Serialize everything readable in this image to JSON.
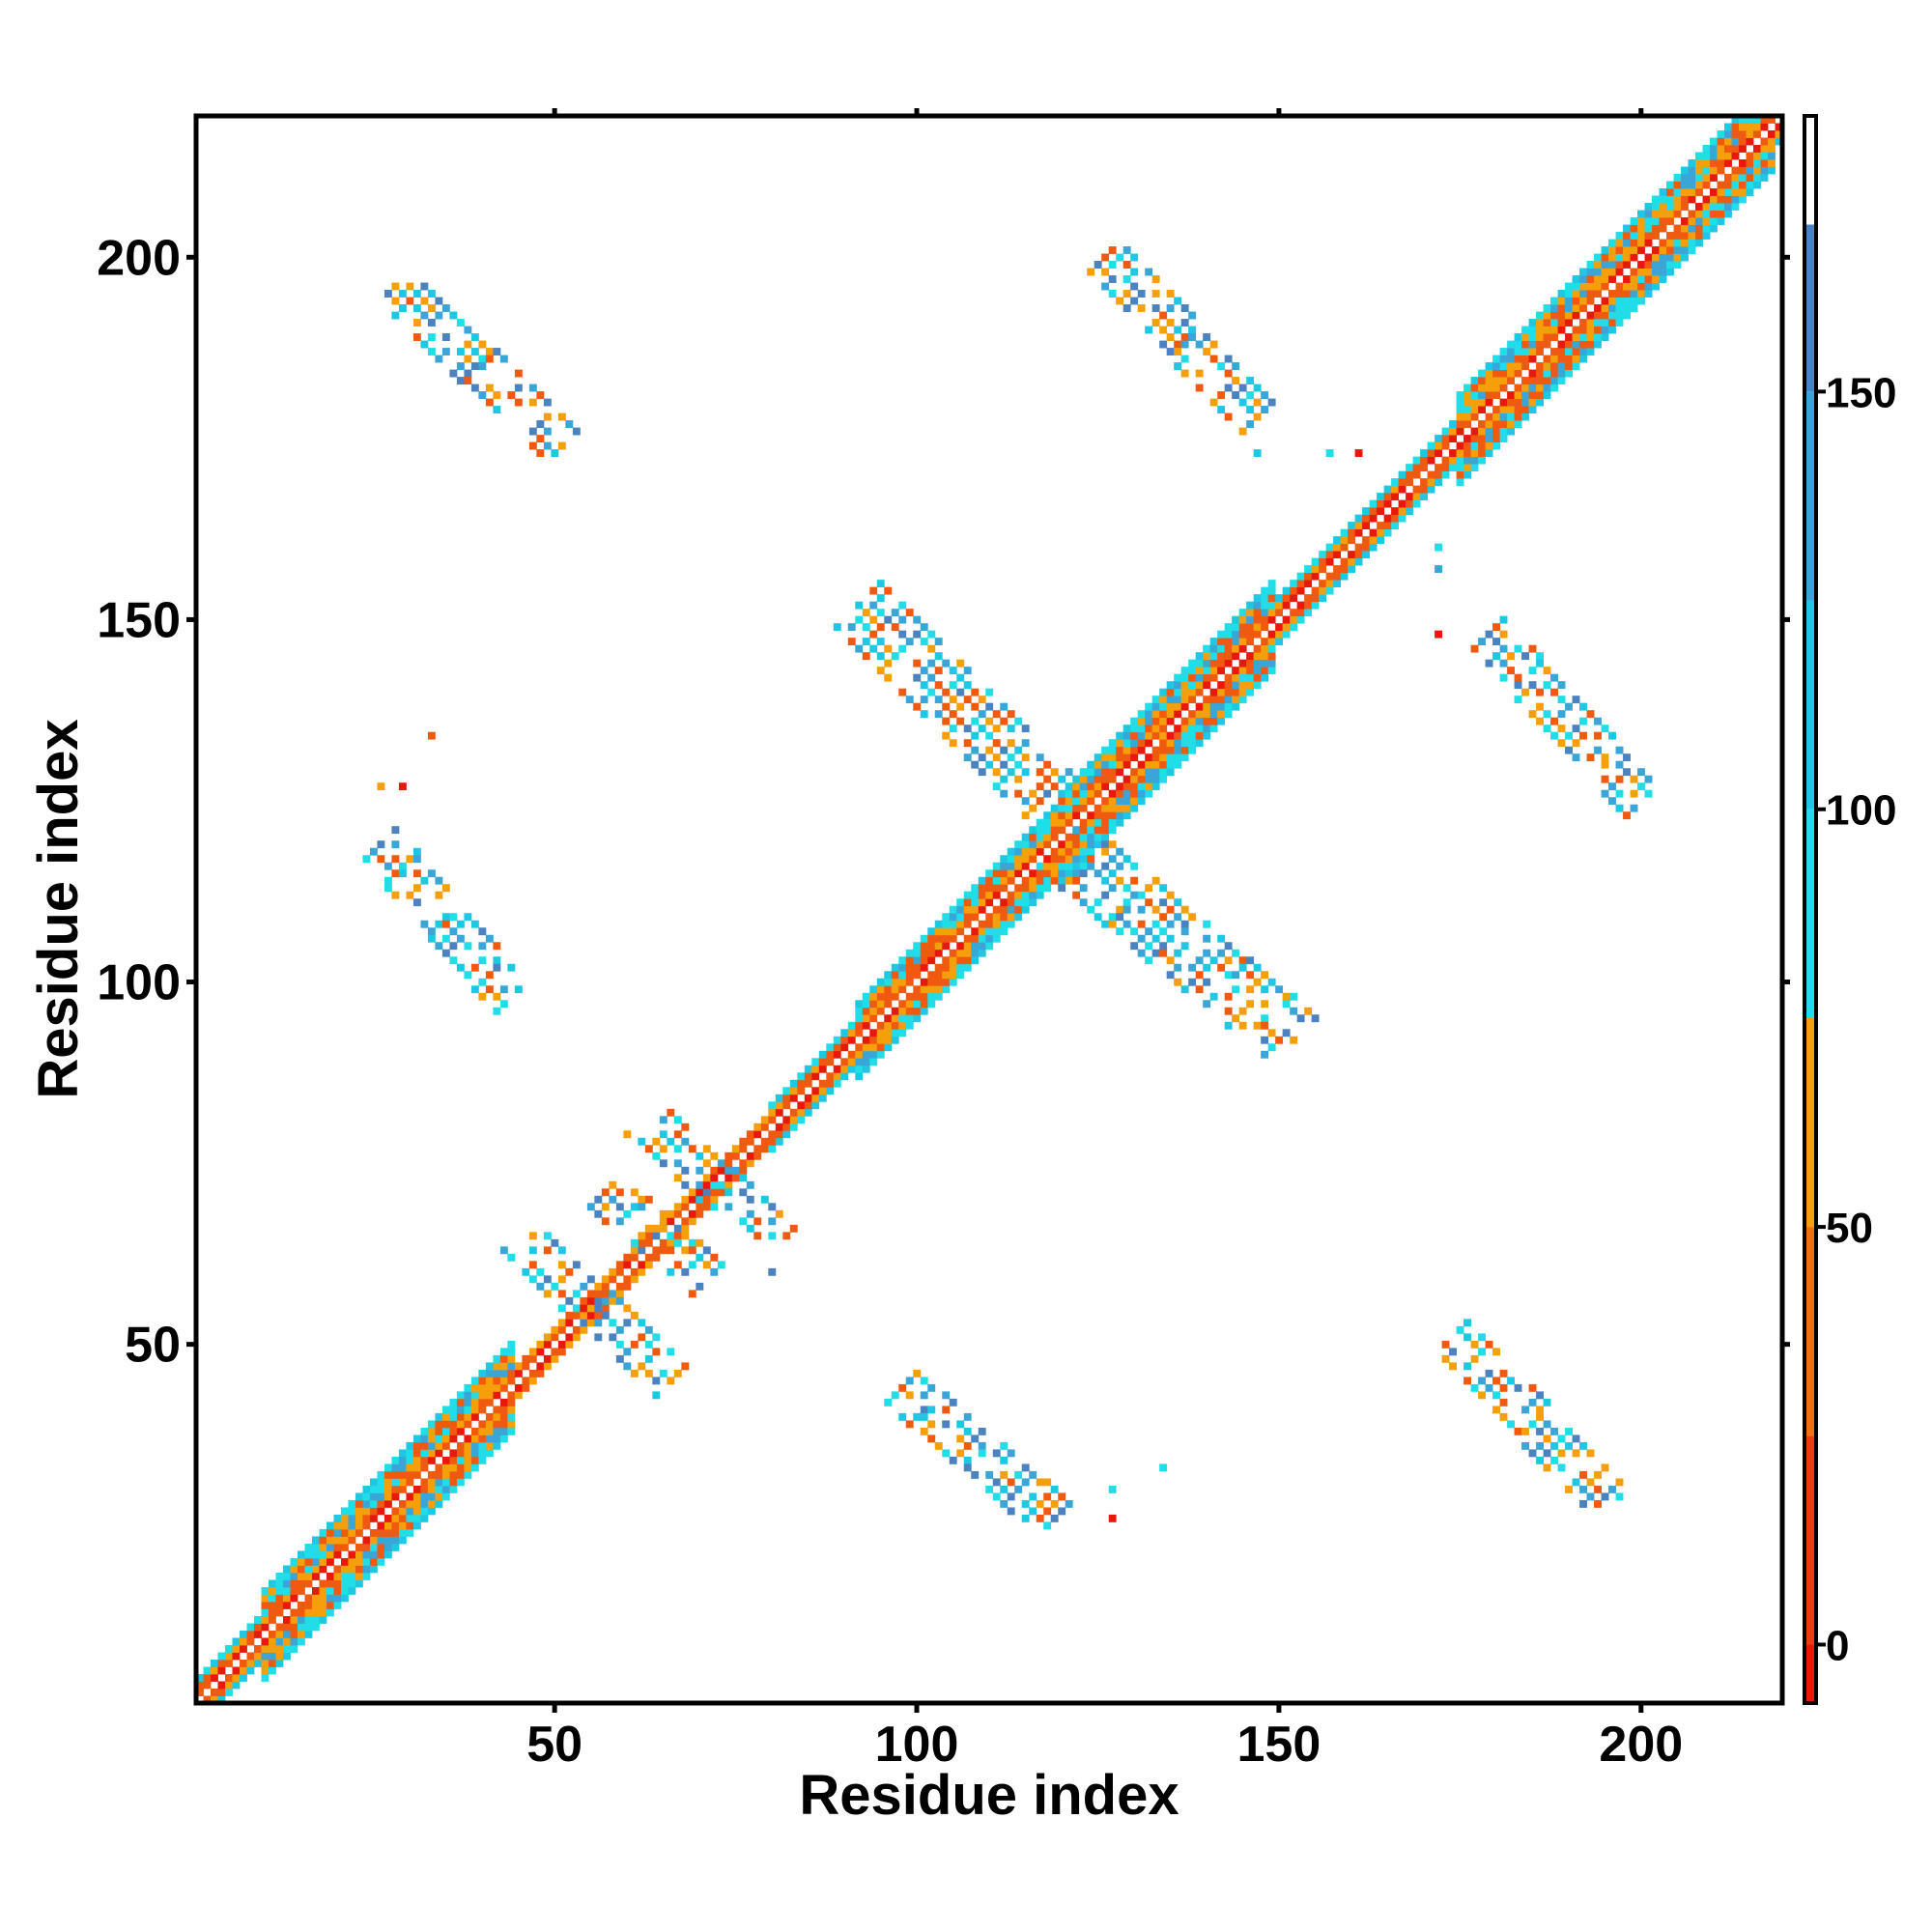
{
  "chart_data": {
    "type": "heatmap",
    "title": "",
    "xlabel": "Residue index",
    "ylabel": "Residue index",
    "xlim": [
      1,
      219
    ],
    "ylim": [
      1,
      219
    ],
    "x_ticks": [
      "50",
      "100",
      "150",
      "200"
    ],
    "y_ticks": [
      "50",
      "100",
      "150",
      "200"
    ],
    "grid": false,
    "legend": "colorbar-right",
    "colorbar": {
      "range": [
        -7,
        183
      ],
      "ticks": [
        "0",
        "50",
        "100",
        "150"
      ],
      "segments": [
        {
          "from": -7,
          "to": 0,
          "color": "#e8180c"
        },
        {
          "from": 0,
          "to": 25,
          "color": "#f03a10"
        },
        {
          "from": 25,
          "to": 50,
          "color": "#f0700f"
        },
        {
          "from": 50,
          "to": 75,
          "color": "#f5a00a"
        },
        {
          "from": 75,
          "to": 100,
          "color": "#20dde8"
        },
        {
          "from": 100,
          "to": 125,
          "color": "#1ec8e2"
        },
        {
          "from": 125,
          "to": 150,
          "color": "#3aa6d8"
        },
        {
          "from": 150,
          "to": 170,
          "color": "#4b82c0"
        },
        {
          "from": 170,
          "to": 183,
          "color": "#ffffff"
        }
      ]
    },
    "palette": [
      "#e8180c",
      "#f05a10",
      "#f5a00a",
      "#20dde8",
      "#1ec8e2",
      "#3aa6d8",
      "#4b82c0"
    ],
    "diagonal": {
      "from": 1,
      "to": 219,
      "half_width_by_range": [
        {
          "from": 1,
          "to": 10,
          "w": 3
        },
        {
          "from": 10,
          "to": 45,
          "w": 6
        },
        {
          "from": 45,
          "to": 80,
          "w": 2
        },
        {
          "from": 80,
          "to": 92,
          "w": 3
        },
        {
          "from": 92,
          "to": 120,
          "w": 5
        },
        {
          "from": 120,
          "to": 150,
          "w": 6
        },
        {
          "from": 150,
          "to": 175,
          "w": 3
        },
        {
          "from": 175,
          "to": 219,
          "w": 6
        }
      ]
    },
    "contact_bands": [
      {
        "x": [
          28,
          51
        ],
        "y": [
          196,
          174
        ],
        "width": 2
      },
      {
        "x": [
          126,
          147
        ],
        "y": [
          200,
          178
        ],
        "width": 2
      },
      {
        "x": [
          92,
          118
        ],
        "y": [
          152,
          126
        ],
        "width": 3
      },
      {
        "x": [
          120,
          152
        ],
        "y": [
          119,
          92
        ],
        "width": 3
      },
      {
        "x": [
          26,
          44
        ],
        "y": [
          119,
          98
        ],
        "width": 2
      },
      {
        "x": [
          179,
          200
        ],
        "y": [
          148,
          125
        ],
        "width": 2
      },
      {
        "x": [
          98,
          119
        ],
        "y": [
          44,
          26
        ],
        "width": 2
      },
      {
        "x": [
          174,
          196
        ],
        "y": [
          51,
          28
        ],
        "width": 2
      },
      {
        "x": [
          45,
          66
        ],
        "y": [
          65,
          45
        ],
        "width": 2
      },
      {
        "x": [
          57,
          71
        ],
        "y": [
          71,
          59
        ],
        "width": 2
      },
      {
        "x": [
          64,
          81
        ],
        "y": [
          80,
          64
        ],
        "width": 2
      }
    ],
    "scattered_contacts": [
      {
        "x": 134,
        "y": 134
      },
      {
        "x": 26,
        "y": 127
      },
      {
        "x": 29,
        "y": 127
      },
      {
        "x": 33,
        "y": 134
      },
      {
        "x": 147,
        "y": 173
      },
      {
        "x": 157,
        "y": 173
      },
      {
        "x": 161,
        "y": 173
      },
      {
        "x": 172,
        "y": 160
      },
      {
        "x": 172,
        "y": 157
      },
      {
        "x": 172,
        "y": 148
      },
      {
        "x": 127,
        "y": 30
      },
      {
        "x": 127,
        "y": 26
      },
      {
        "x": 134,
        "y": 33
      },
      {
        "x": 60,
        "y": 79
      },
      {
        "x": 80,
        "y": 60
      }
    ]
  }
}
